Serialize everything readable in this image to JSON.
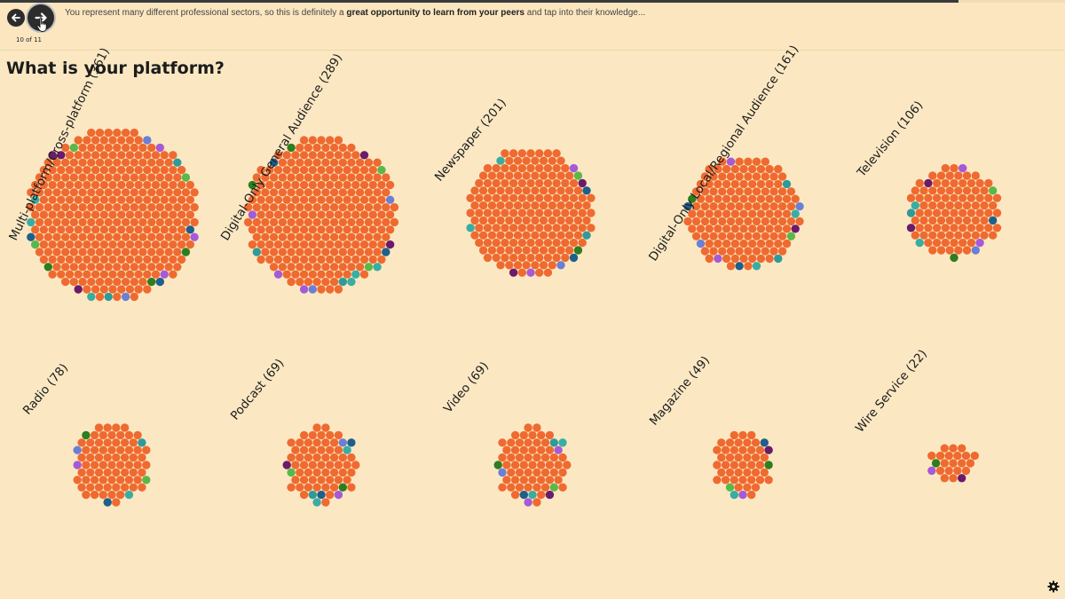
{
  "nav": {
    "prev_icon": "arrow-left-icon",
    "next_icon": "arrow-right-icon",
    "counter": "10 of 11",
    "progress_fraction": 0.9
  },
  "intro": {
    "before": "You represent many different professional sectors, so this is definitely a ",
    "bold": "great opportunity to learn from your peers",
    "after": " and tap into their knowledge..."
  },
  "page_title": "What is your platform?",
  "colors": {
    "main": "#ef6a30",
    "background": "#fbe8c3",
    "accents": [
      "#1f5f8b",
      "#3aada3",
      "#a55ad6",
      "#6b1b6b",
      "#2e7d1f",
      "#5ab84a",
      "#6b7fd6",
      "#2f9a9a"
    ]
  },
  "chart_data": {
    "type": "other",
    "title": "What is your platform?",
    "groups": [
      {
        "name": "Multi-platform/Cross-platform",
        "count": 361,
        "label": "Multi-platform/Cross-platform (361)"
      },
      {
        "name": "Digital-Only General Audience",
        "count": 289,
        "label": "Digital-Only General Audience (289)"
      },
      {
        "name": "Newspaper",
        "count": 201,
        "label": "Newspaper (201)"
      },
      {
        "name": "Digital-Only Local/Regional Audience",
        "count": 161,
        "label": "Digital-Only Local/Regional Audience (161)"
      },
      {
        "name": "Television",
        "count": 106,
        "label": "Television (106)"
      },
      {
        "name": "Radio",
        "count": 78,
        "label": "Radio (78)"
      },
      {
        "name": "Podcast",
        "count": 69,
        "label": "Podcast (69)"
      },
      {
        "name": "Video",
        "count": 69,
        "label": "Video (69)"
      },
      {
        "name": "Magazine",
        "count": 49,
        "label": "Magazine (49)"
      },
      {
        "name": "Wire Service",
        "count": 22,
        "label": "Wire Service (22)"
      }
    ]
  },
  "settings_icon": "gear-icon"
}
